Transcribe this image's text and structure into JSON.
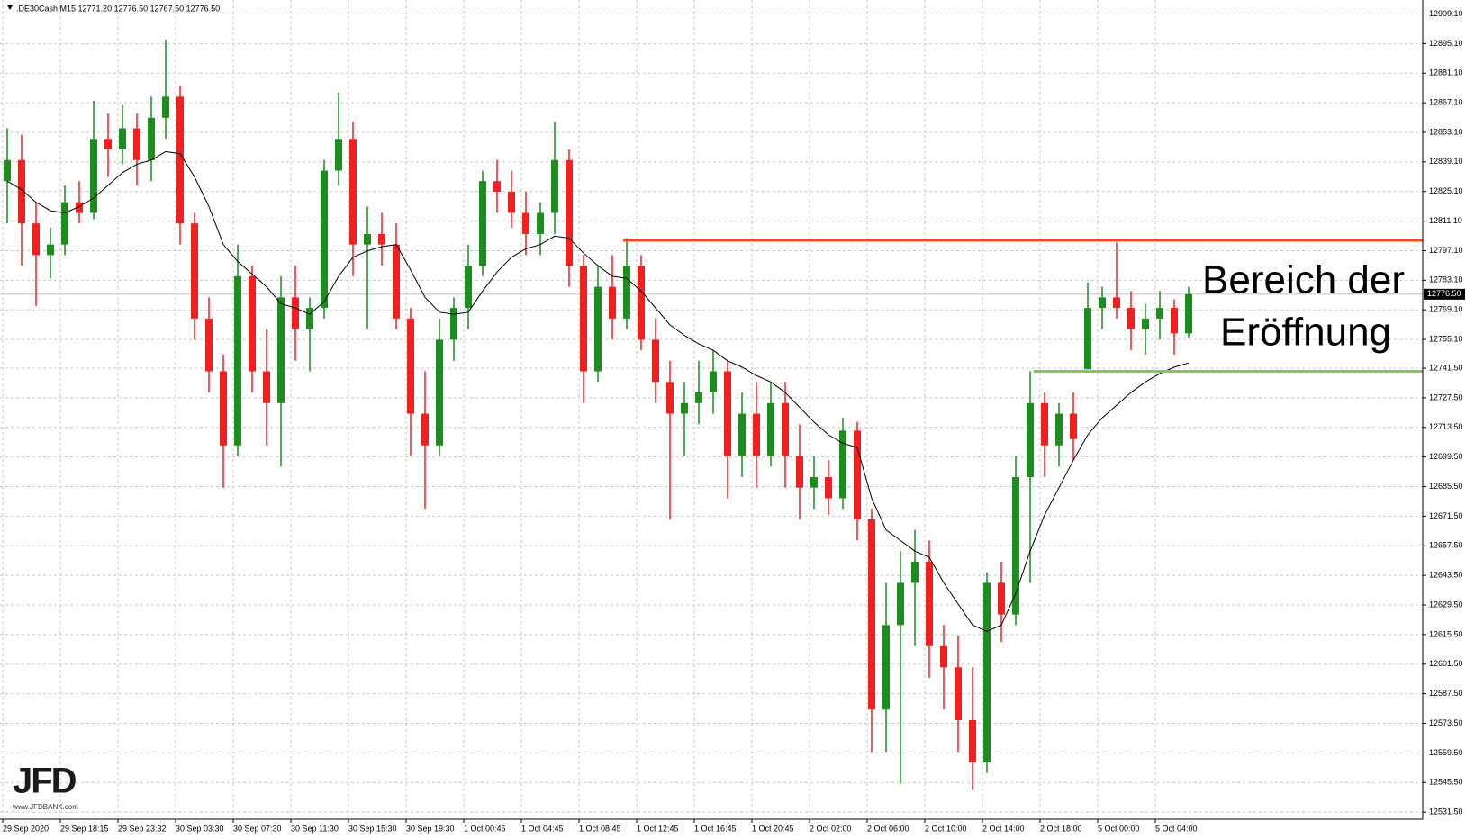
{
  "chart_data": {
    "type": "candlestick",
    "title": ".DE30Cash,M15  12771.20 12776.50 12767.50 12776.50",
    "categories": [
      "29 Sep 2020",
      null,
      null,
      null,
      "29 Sep 18:15",
      null,
      null,
      null,
      "29 Sep 23:32",
      null,
      null,
      null,
      "30 Sep 03:30",
      null,
      null,
      null,
      "30 Sep 07:30",
      null,
      null,
      null,
      "30 Sep 11:30",
      null,
      null,
      null,
      "30 Sep 15:30",
      null,
      null,
      null,
      "30 Sep 19:30",
      null,
      null,
      null,
      "1 Oct 00:45",
      null,
      null,
      null,
      "1 Oct 04:45",
      null,
      null,
      null,
      "1 Oct 08:45",
      null,
      null,
      null,
      "1 Oct 12:45",
      null,
      null,
      null,
      "1 Oct 16:45",
      null,
      null,
      null,
      "1 Oct 20:45",
      null,
      null,
      null,
      "2 Oct 02:00",
      null,
      null,
      null,
      "2 Oct 06:00",
      null,
      null,
      null,
      "2 Oct 10:00",
      null,
      null,
      null,
      "2 Oct 14:00",
      null,
      null,
      null,
      "2 Oct 18:00",
      null,
      null,
      null,
      "5 Oct 00:00",
      null,
      null,
      null,
      "5 Oct 04:00",
      null,
      null
    ],
    "open": [
      12830,
      12840,
      12810,
      12795,
      12800,
      12820,
      12815,
      12850,
      12845,
      12855,
      12840,
      12860,
      12870,
      12810,
      12765,
      12740,
      12705,
      12785,
      12740,
      12725,
      12775,
      12760,
      12770,
      12835,
      12850,
      12800,
      12805,
      12800,
      12765,
      12720,
      12705,
      12755,
      12770,
      12790,
      12830,
      12825,
      12815,
      12805,
      12815,
      12840,
      12790,
      12740,
      12780,
      12765,
      12790,
      12755,
      12735,
      12720,
      12725,
      12730,
      12740,
      12700,
      12720,
      12700,
      12725,
      12700,
      12685,
      12690,
      12680,
      12712,
      12670,
      12580,
      12620,
      12640,
      12650,
      12610,
      12600,
      12575,
      12555,
      12640,
      12625,
      12690,
      12725,
      12705,
      12720,
      12741,
      12770,
      12775,
      12770,
      12760,
      12765,
      12770,
      12758
    ],
    "high": [
      12855,
      12852,
      12820,
      12808,
      12828,
      12830,
      12868,
      12862,
      12866,
      12862,
      12870,
      12897,
      12875,
      12815,
      12775,
      12748,
      12800,
      12790,
      12760,
      12785,
      12790,
      12775,
      12840,
      12872,
      12858,
      12818,
      12815,
      12810,
      12770,
      12740,
      12765,
      12775,
      12800,
      12835,
      12840,
      12835,
      12825,
      12820,
      12858,
      12845,
      12795,
      12790,
      12795,
      12803,
      12795,
      12765,
      12745,
      12735,
      12745,
      12750,
      12745,
      12730,
      12735,
      12735,
      12735,
      12715,
      12700,
      12698,
      12718,
      12716,
      12675,
      12640,
      12655,
      12665,
      12660,
      12620,
      12615,
      12600,
      12645,
      12650,
      12700,
      12740,
      12730,
      12725,
      12730,
      12782,
      12780,
      12801,
      12778,
      12772,
      12778,
      12774,
      12780
    ],
    "low": [
      12810,
      12790,
      12771,
      12784,
      12795,
      12810,
      12812,
      12832,
      12838,
      12828,
      12830,
      12850,
      12800,
      12755,
      12730,
      12685,
      12700,
      12730,
      12705,
      12695,
      12745,
      12740,
      12765,
      12828,
      12785,
      12760,
      12790,
      12760,
      12700,
      12675,
      12700,
      12745,
      12760,
      12785,
      12815,
      12808,
      12795,
      12795,
      12805,
      12780,
      12725,
      12735,
      12755,
      12760,
      12750,
      12725,
      12670,
      12700,
      12715,
      12720,
      12680,
      12690,
      12685,
      12695,
      12685,
      12670,
      12675,
      12672,
      12675,
      12660,
      12560,
      12560,
      12545,
      12610,
      12595,
      12580,
      12560,
      12542,
      12550,
      12612,
      12620,
      12640,
      12690,
      12695,
      12698,
      12741,
      12760,
      12765,
      12750,
      12748,
      12755,
      12748,
      12756
    ],
    "close": [
      12840,
      12810,
      12795,
      12800,
      12820,
      12815,
      12850,
      12845,
      12855,
      12840,
      12860,
      12870,
      12810,
      12765,
      12740,
      12705,
      12785,
      12740,
      12725,
      12775,
      12760,
      12770,
      12835,
      12850,
      12800,
      12805,
      12800,
      12765,
      12720,
      12705,
      12755,
      12770,
      12790,
      12830,
      12825,
      12815,
      12805,
      12815,
      12840,
      12790,
      12740,
      12780,
      12765,
      12790,
      12755,
      12735,
      12720,
      12725,
      12730,
      12740,
      12700,
      12720,
      12700,
      12725,
      12700,
      12685,
      12690,
      12680,
      12712,
      12670,
      12580,
      12620,
      12640,
      12650,
      12610,
      12600,
      12575,
      12555,
      12640,
      12625,
      12690,
      12725,
      12705,
      12720,
      12708,
      12770,
      12775,
      12770,
      12760,
      12765,
      12770,
      12758,
      12776.5
    ],
    "up_color": "#1e8c1e",
    "down_color": "#f02020",
    "ma": {
      "color": "#000000",
      "values": [
        12830,
        12826,
        12820,
        12816,
        12815,
        12818,
        12822,
        12828,
        12834,
        12838,
        12840,
        12844,
        12843,
        12832,
        12818,
        12800,
        12792,
        12786,
        12780,
        12772,
        12770,
        12767,
        12773,
        12785,
        12794,
        12797,
        12799,
        12800,
        12788,
        12775,
        12768,
        12767,
        12768,
        12778,
        12787,
        12794,
        12798,
        12800,
        12804,
        12803,
        12796,
        12790,
        12785,
        12784,
        12778,
        12770,
        12762,
        12757,
        12753,
        12750,
        12745,
        12742,
        12738,
        12735,
        12730,
        12723,
        12716,
        12710,
        12706,
        12704,
        12680,
        12665,
        12660,
        12655,
        12652,
        12640,
        12630,
        12620,
        12617,
        12620,
        12635,
        12655,
        12672,
        12685,
        12698,
        12710,
        12718,
        12724,
        12730,
        12735,
        12739,
        12742,
        12744
      ]
    },
    "levels": [
      {
        "value": 12802,
        "color": "#ff4522"
      },
      {
        "value": 12740,
        "color": "#7ec855"
      }
    ],
    "current_price": {
      "value": 12776.5,
      "label": "12776.50"
    },
    "annotation": [
      "Bereich der",
      "Eröffnung"
    ],
    "logo": {
      "name": "JFD",
      "url": "www.JFDBANK.com"
    },
    "ylim": [
      12529,
      12914
    ],
    "yticks": [
      {
        "value": 12909.1,
        "label": "12909.10"
      },
      {
        "value": 12895.1,
        "label": "12895.10"
      },
      {
        "value": 12881.1,
        "label": "12881.10"
      },
      {
        "value": 12867.1,
        "label": "12867.10"
      },
      {
        "value": 12853.1,
        "label": "12853.10"
      },
      {
        "value": 12839.1,
        "label": "12839.10"
      },
      {
        "value": 12825.1,
        "label": "12825.10"
      },
      {
        "value": 12811.1,
        "label": "12811.10"
      },
      {
        "value": 12797.1,
        "label": "12797.10"
      },
      {
        "value": 12783.1,
        "label": "12783.10"
      },
      {
        "value": 12769.1,
        "label": "12769.10"
      },
      {
        "value": 12755.1,
        "label": "12755.10"
      },
      {
        "value": 12741.5,
        "label": "12741.50"
      },
      {
        "value": 12727.5,
        "label": "12727.50"
      },
      {
        "value": 12713.5,
        "label": "12713.50"
      },
      {
        "value": 12699.5,
        "label": "12699.50"
      },
      {
        "value": 12685.5,
        "label": "12685.50"
      },
      {
        "value": 12671.5,
        "label": "12671.50"
      },
      {
        "value": 12657.5,
        "label": "12657.50"
      },
      {
        "value": 12643.5,
        "label": "12643.50"
      },
      {
        "value": 12629.5,
        "label": "12629.50"
      },
      {
        "value": 12615.5,
        "label": "12615.50"
      },
      {
        "value": 12601.5,
        "label": "12601.50"
      },
      {
        "value": 12587.5,
        "label": "12587.50"
      },
      {
        "value": 12573.5,
        "label": "12573.50"
      },
      {
        "value": 12559.5,
        "label": "12559.50"
      },
      {
        "value": 12545.5,
        "label": "12545.50"
      },
      {
        "value": 12531.5,
        "label": "12531.50"
      }
    ],
    "grid": true
  }
}
